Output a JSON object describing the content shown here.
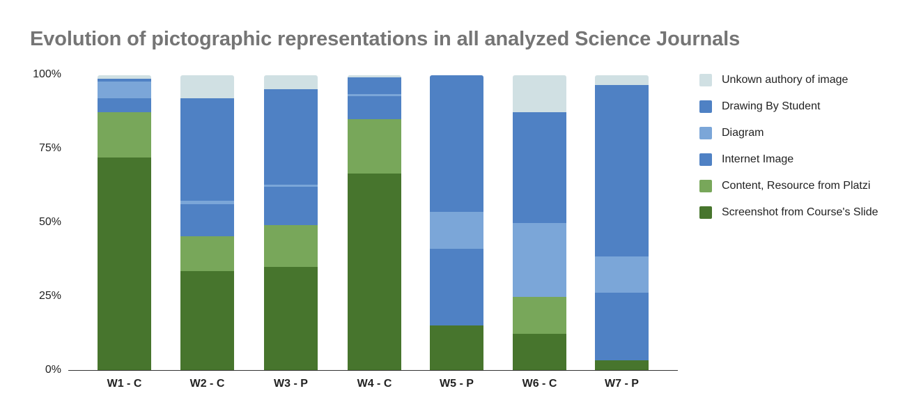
{
  "chart_data": {
    "type": "bar",
    "stacked": true,
    "normalized": true,
    "title": "Evolution of pictographic representations in all analyzed Science Journals",
    "xlabel": "",
    "ylabel": "",
    "ylim": [
      0,
      100
    ],
    "y_ticks": [
      "0%",
      "25%",
      "50%",
      "75%",
      "100%"
    ],
    "grid": false,
    "legend_position": "right",
    "categories": [
      "W1 - C",
      "W2 - C",
      "W3 - P",
      "W4 - C",
      "W5 - P",
      "W6 - C",
      "W7 - P"
    ],
    "series": [
      {
        "name": "Screenshot from Course's Slide",
        "color": "#47752d",
        "values": [
          72.2,
          33.7,
          35.1,
          66.7,
          15.4,
          12.5,
          3.5
        ]
      },
      {
        "name": "Content, Resource from Platzi",
        "color": "#78a75a",
        "values": [
          15.3,
          11.8,
          14.2,
          18.4,
          0,
          12.5,
          0
        ]
      },
      {
        "name": "Internet Image",
        "color": "#4f81c4",
        "values": [
          4.7,
          10.8,
          13.0,
          7.8,
          25.9,
          0,
          22.9
        ]
      },
      {
        "name": "Diagram",
        "color": "#7ba6d8",
        "values": [
          5.7,
          1.2,
          0.7,
          0.7,
          12.5,
          25.0,
          12.3
        ]
      },
      {
        "name": "Drawing By Student",
        "color": "#4f81c4",
        "values": [
          0.9,
          34.7,
          32.3,
          5.7,
          46.2,
          37.5,
          58.0
        ]
      },
      {
        "name": "Unkown authory of image",
        "color": "#d0e0e3",
        "values": [
          1.2,
          7.8,
          4.7,
          0.7,
          0,
          12.5,
          3.3
        ]
      }
    ]
  },
  "legend": [
    {
      "label": "Unkown authory of image",
      "color": "#d0e0e3"
    },
    {
      "label": "Drawing By Student",
      "color": "#4f81c4"
    },
    {
      "label": "Diagram",
      "color": "#7ba6d8"
    },
    {
      "label": "Internet Image",
      "color": "#4f81c4"
    },
    {
      "label": "Content, Resource from Platzi",
      "color": "#78a75a"
    },
    {
      "label": "Screenshot from Course's Slide",
      "color": "#47752d"
    }
  ]
}
